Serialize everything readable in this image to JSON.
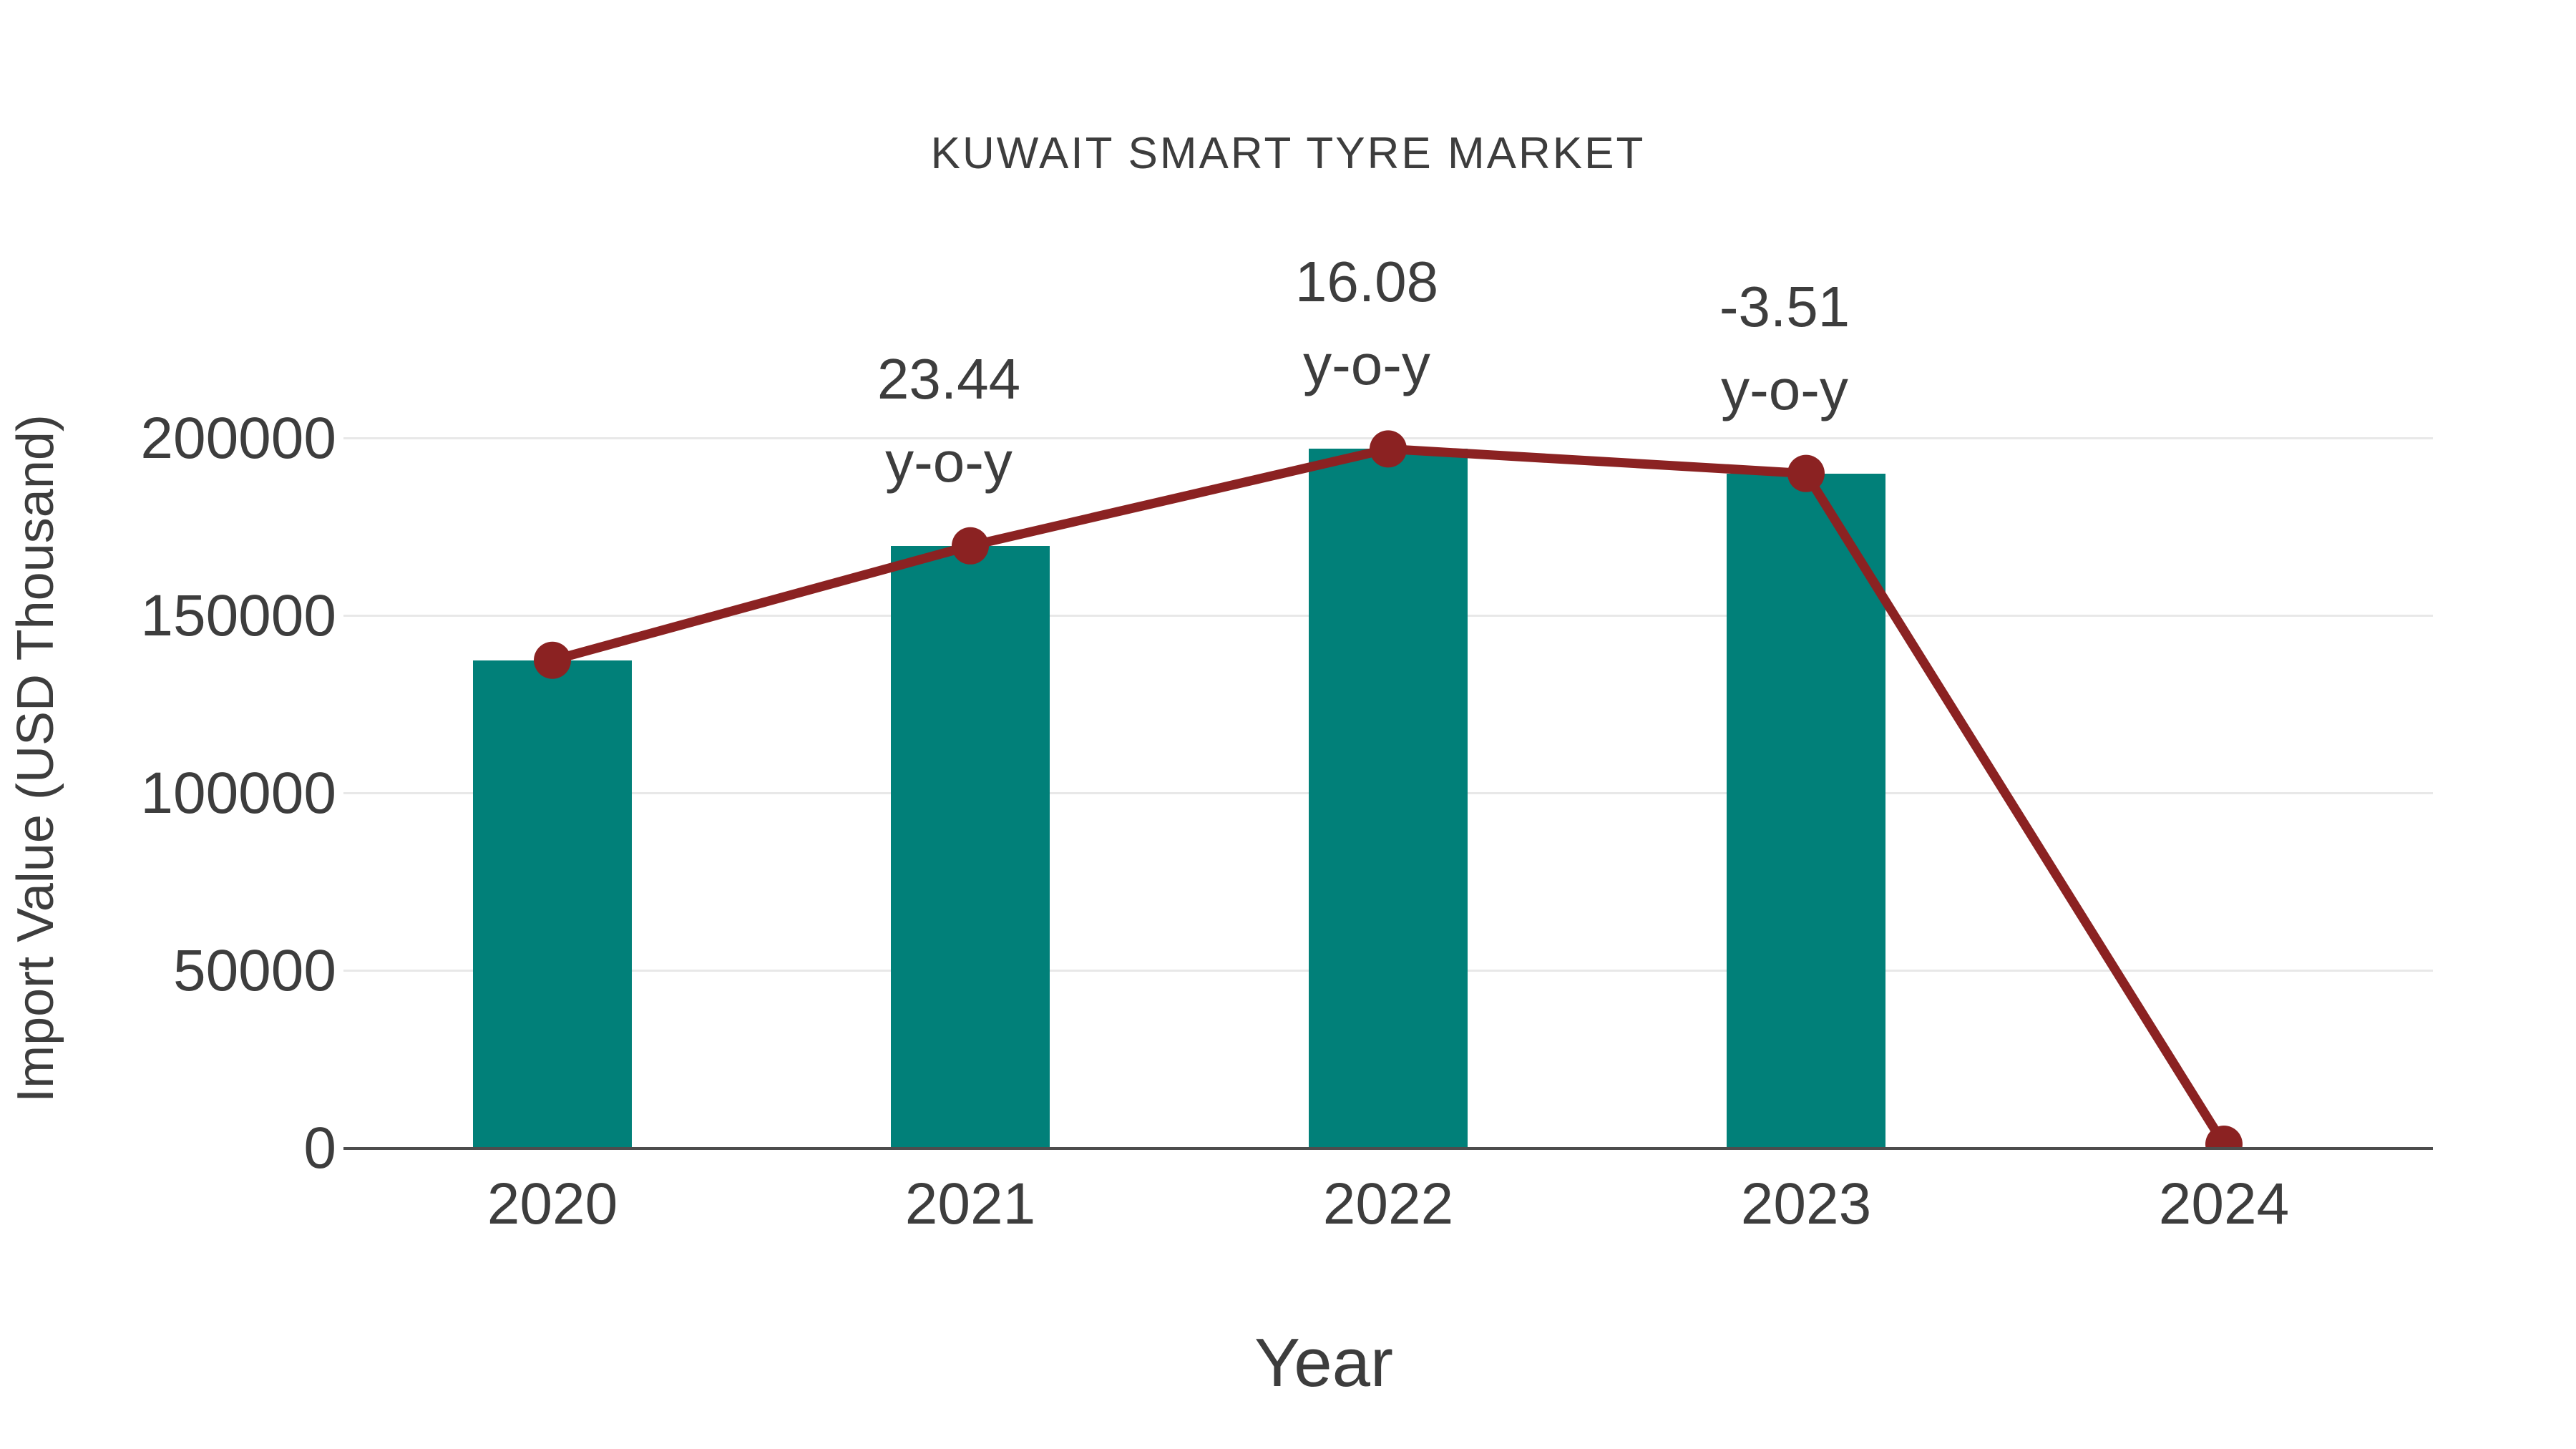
{
  "page": {
    "background": "#ffffff"
  },
  "chart_data": {
    "type": "bar",
    "title": "KUWAIT SMART TYRE MARKET",
    "xlabel": "Year",
    "ylabel": "Import Value (USD Thousand)",
    "categories": [
      "2020",
      "2021",
      "2022",
      "2023",
      "2024"
    ],
    "series": [
      {
        "name": "Import Value bars",
        "type": "bar",
        "values": [
          137500,
          169730,
          197020,
          190110,
          null
        ]
      },
      {
        "name": "Import Value trend line",
        "type": "line",
        "values": [
          137500,
          169730,
          197020,
          190110,
          1200
        ]
      }
    ],
    "yticks": [
      0,
      50000,
      100000,
      150000,
      200000
    ],
    "ylim": [
      0,
      263000
    ],
    "grid": "horizontal",
    "legend": "none",
    "annotations": [
      {
        "x": "2021",
        "value_label": "23.44",
        "unit_label": "y-o-y"
      },
      {
        "x": "2022",
        "value_label": "16.08",
        "unit_label": "y-o-y"
      },
      {
        "x": "2023",
        "value_label": "-3.51",
        "unit_label": "y-o-y"
      }
    ],
    "colors": {
      "bar": "#018079",
      "line": "#8b2222",
      "grid": "#e8e8e8",
      "axis": "#4d4d4d",
      "text": "#3d3d3d"
    }
  }
}
